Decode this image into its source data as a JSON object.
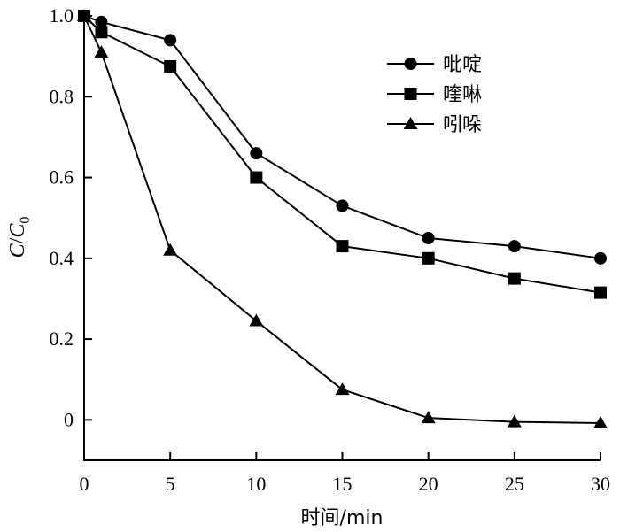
{
  "chart_data": {
    "type": "line",
    "xlabel": "时间/min",
    "ylabel_main": "C",
    "ylabel_den": "C",
    "ylabel_sub": "0",
    "xlim": [
      0,
      30
    ],
    "ylim": [
      -0.1,
      1.0
    ],
    "x_ticks": [
      0,
      5,
      10,
      15,
      20,
      25,
      30
    ],
    "x_tick_labels": [
      "0",
      "5",
      "10",
      "15",
      "20",
      "25",
      "30"
    ],
    "y_ticks": [
      0,
      0.2,
      0.4,
      0.6,
      0.8,
      1.0
    ],
    "y_tick_labels": [
      "0",
      "0.2",
      "0.4",
      "0.6",
      "0.8",
      "1.0"
    ],
    "grid": false,
    "legend_position": "top-right",
    "series": [
      {
        "name": "吡啶",
        "marker": "circle",
        "x": [
          0,
          1,
          5,
          10,
          15,
          20,
          25,
          30
        ],
        "y": [
          1.0,
          0.985,
          0.94,
          0.66,
          0.53,
          0.45,
          0.43,
          0.4
        ]
      },
      {
        "name": "喹啉",
        "marker": "square",
        "x": [
          0,
          1,
          5,
          10,
          15,
          20,
          25,
          30
        ],
        "y": [
          1.0,
          0.96,
          0.875,
          0.6,
          0.43,
          0.4,
          0.35,
          0.315
        ]
      },
      {
        "name": "吲哚",
        "marker": "triangle",
        "x": [
          0,
          1,
          5,
          10,
          15,
          20,
          25,
          30
        ],
        "y": [
          1.0,
          0.91,
          0.42,
          0.245,
          0.075,
          0.005,
          -0.005,
          -0.008
        ]
      }
    ]
  }
}
